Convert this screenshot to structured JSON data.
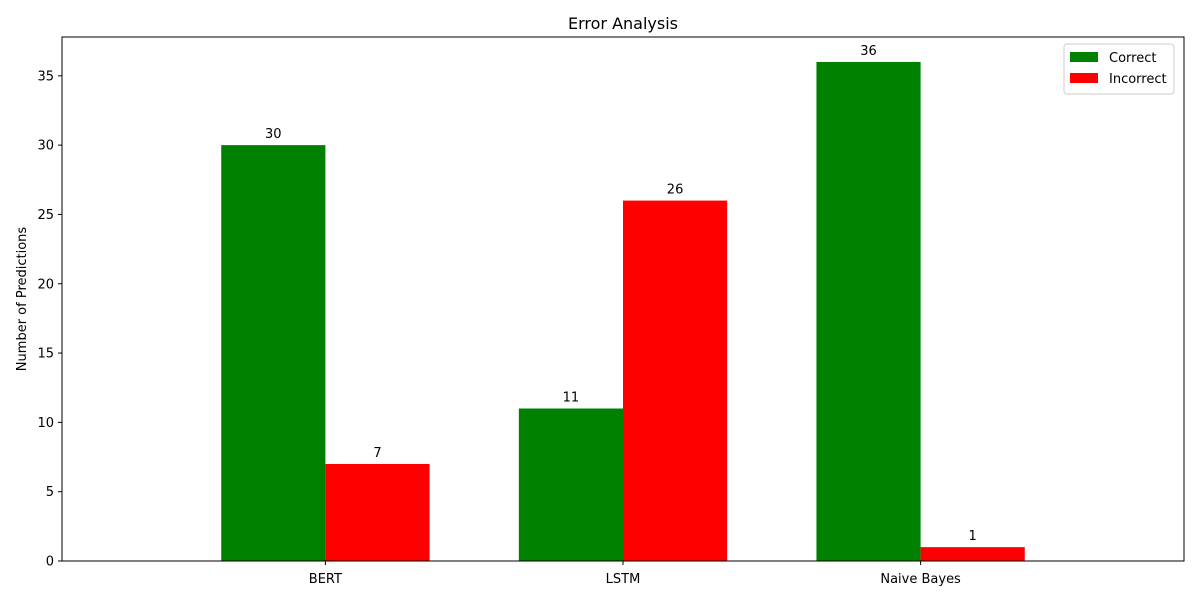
{
  "chart_data": {
    "type": "bar",
    "title": "Error Analysis",
    "xlabel": "",
    "ylabel": "Number of Predictions",
    "categories": [
      "BERT",
      "LSTM",
      "Naive Bayes"
    ],
    "series": [
      {
        "name": "Correct",
        "values": [
          30,
          11,
          36
        ],
        "color": "#008000"
      },
      {
        "name": "Incorrect",
        "values": [
          7,
          26,
          1
        ],
        "color": "#ff0000"
      }
    ],
    "ylim": [
      0,
      37.8
    ],
    "yticks": [
      0,
      5,
      10,
      15,
      20,
      25,
      30,
      35
    ],
    "grid": false,
    "legend_position": "top-right",
    "data_labels": true
  }
}
